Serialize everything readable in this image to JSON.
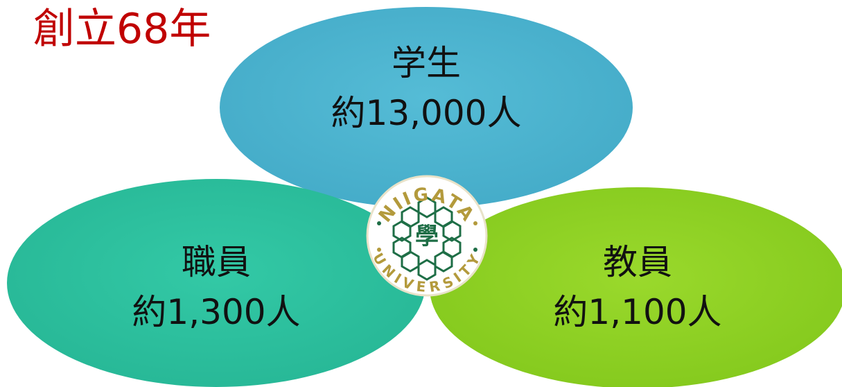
{
  "title": "創立68年",
  "nodes": [
    {
      "label": "学生",
      "value": "約13,000人"
    },
    {
      "label": "職員",
      "value": "約1,300人"
    },
    {
      "label": "教員",
      "value": "約1,100人"
    }
  ],
  "logo": {
    "top": "NIIGATA",
    "bottom": "UNIVERSITY",
    "center": "學"
  }
}
